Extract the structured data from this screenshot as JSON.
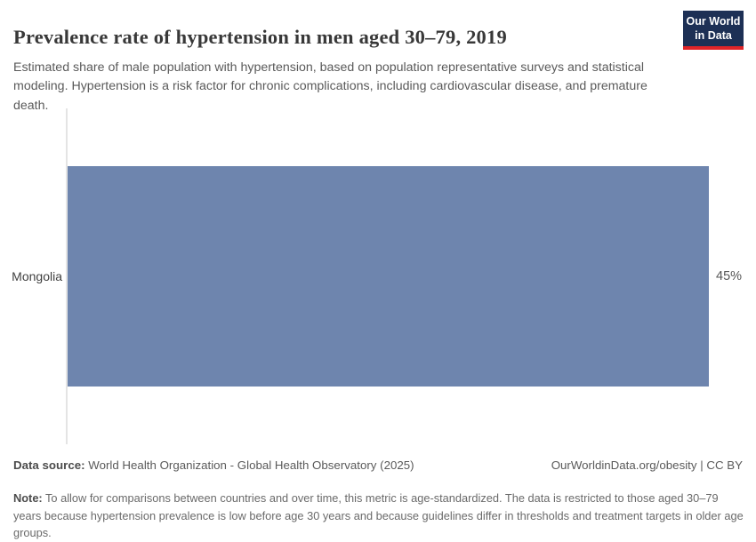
{
  "header": {
    "title": "Prevalence rate of hypertension in men aged 30–79, 2019",
    "subtitle": "Estimated share of male population with hypertension, based on population representative surveys and statistical modeling. Hypertension is a risk factor for chronic complications, including cardiovascular disease, and premature death.",
    "logo": {
      "line1": "Our World",
      "line2": "in Data",
      "bg_color": "#1d3055",
      "accent_color": "#e02428"
    }
  },
  "chart_data": {
    "type": "bar",
    "orientation": "horizontal",
    "title": "Prevalence rate of hypertension in men aged 30–79, 2019",
    "categories": [
      "Mongolia"
    ],
    "values": [
      45
    ],
    "value_labels": [
      "45%"
    ],
    "unit": "%",
    "xlim": [
      0,
      45
    ],
    "grid": false,
    "legend": false,
    "bar_color": "#6e85ae",
    "axis_line_color": "#e4e4e4"
  },
  "footer": {
    "datasource_label": "Data source:",
    "datasource_text": " World Health Organization - Global Health Observatory (2025)",
    "link_text": "OurWorldinData.org/obesity | CC BY",
    "note_label": "Note:",
    "note_text": " To allow for comparisons between countries and over time, this metric is age-standardized. The data is restricted to those aged 30–79 years because hypertension prevalence is low before age 30 years and because guidelines differ in thresholds and treatment targets in older age groups."
  }
}
